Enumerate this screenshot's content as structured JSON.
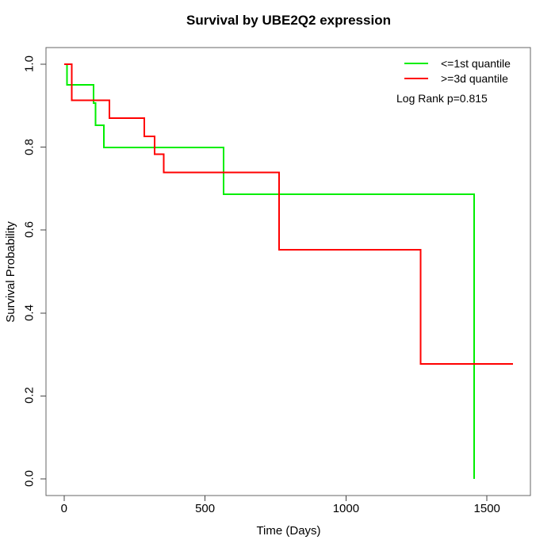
{
  "chart_data": {
    "type": "line",
    "chart_kind": "kaplan_meier_step_curves",
    "title": "Survival by UBE2Q2 expression",
    "xlabel": "Time (Days)",
    "ylabel": "Survival Probability",
    "grid": false,
    "xlim": [
      -64,
      1654
    ],
    "ylim": [
      -0.04,
      1.04
    ],
    "xticks": [
      0,
      500,
      1000,
      1500
    ],
    "xtick_labels": [
      "0",
      "500",
      "1000",
      "1500"
    ],
    "yticks": [
      0.0,
      0.2,
      0.4,
      0.6,
      0.8,
      1.0
    ],
    "ytick_labels": [
      "0.0",
      "0.2",
      "0.4",
      "0.6",
      "0.8",
      "1.0"
    ],
    "legend_position": "top-right-inside",
    "annotation": "Log Rank p=0.815",
    "frame_color": "#666666",
    "series": [
      {
        "name": "<=1st quantile",
        "color": "#00ee00",
        "times": [
          0,
          11,
          105,
          112,
          141,
          566,
          1455
        ],
        "survival": [
          1.0,
          0.95,
          0.906,
          0.853,
          0.799,
          0.686,
          0.0
        ],
        "end_time": 1455
      },
      {
        "name": ">=3d quantile",
        "color": "#ff0000",
        "times": [
          0,
          28,
          161,
          284,
          321,
          354,
          763,
          1264
        ],
        "survival": [
          1.0,
          0.913,
          0.87,
          0.826,
          0.783,
          0.739,
          0.553,
          0.277
        ],
        "end_time": 1592
      }
    ]
  }
}
